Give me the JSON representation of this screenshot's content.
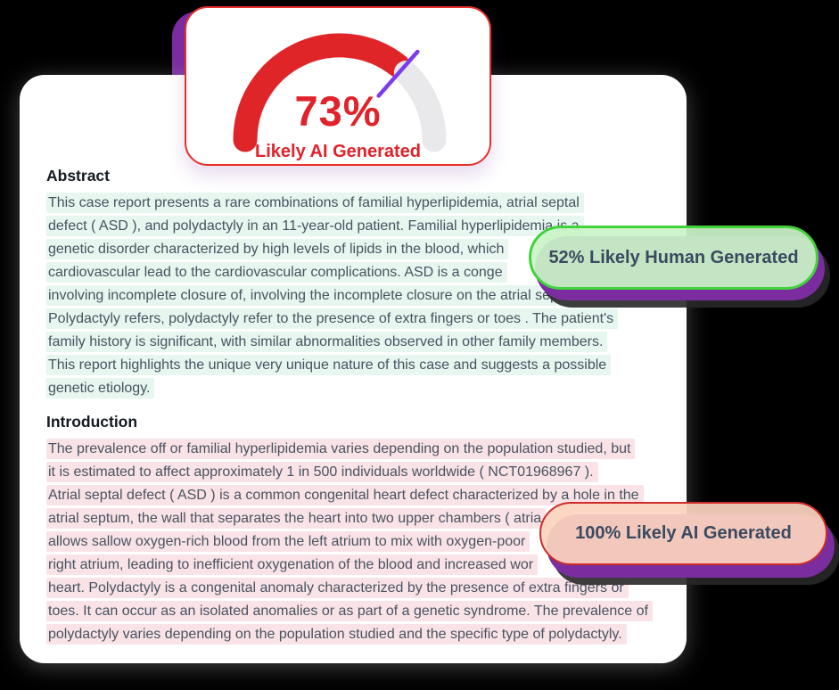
{
  "page": {
    "background": "#000000"
  },
  "gauge": {
    "type": "gauge",
    "percent": 73,
    "percent_text": "73%",
    "verdict": "Likely AI Generated",
    "range": [
      0,
      100
    ],
    "colors": {
      "filled_arc": "#e02529",
      "empty_arc": "#e9e9eb",
      "needle": "#7d3bf0",
      "card_border": "#e43028",
      "text": "#e0222a"
    }
  },
  "doc": {
    "sections": [
      {
        "heading": "Abstract",
        "highlight": "#e7f6ee",
        "lines": [
          "This case report presents a rare combinations of familial hyperlipidemia, atrial septal",
          "defect ( ASD ), and polydactyly in an 11-year-old patient. Familial hyperlipidemia is a",
          "genetic disorder characterized by high levels of lipids in the blood, which",
          "cardiovascular lead to the cardiovascular complications. ASD is a conge",
          "involving incomplete closure of, involving the incomplete closure on the atrial septal.",
          "Polydactyly refers, polydactyly refer to the presence of extra fingers or toes . The patient's",
          "family history is significant, with similar abnormalities observed in other family members.",
          "This report highlights the unique very unique nature of this case and suggests a possible",
          "genetic etiology."
        ]
      },
      {
        "heading": "Introduction",
        "highlight": "#fae3e6",
        "lines": [
          "The prevalence off or familial hyperlipidemia varies depending on the population studied, but",
          "it is estimated to affect approximately 1 in 500 individuals worldwide ( NCT01968967 ).",
          "Atrial septal defect ( ASD ) is a common congenital heart defect characterized by a hole in the",
          "atrial septum, the wall that separates the heart into two upper chambers ( atria",
          "allows sallow oxygen-rich blood from the left atrium to mix with oxygen-poor",
          "right atrium, leading to inefficient oxygenation of the blood and increased wor",
          "heart. Polydactyly is a congenital anomaly characterized by the presence of extra fingers or",
          "toes. It can occur as an isolated anomalies or as part of a genetic syndrome. The prevalence of",
          "polydactyly varies depending on the population studied and the specific type of polydactyly."
        ]
      }
    ]
  },
  "badges": [
    {
      "label": "52% Likely Human Generated",
      "bg": "rgba(201,243,198,0.93)",
      "border": "#42d23c",
      "shadow": "#7b2da0"
    },
    {
      "label": "100% Likely AI Generated",
      "bg": "rgba(251,212,190,0.93)",
      "border": "#cf2b28",
      "shadow": "#7b2da0"
    }
  ]
}
